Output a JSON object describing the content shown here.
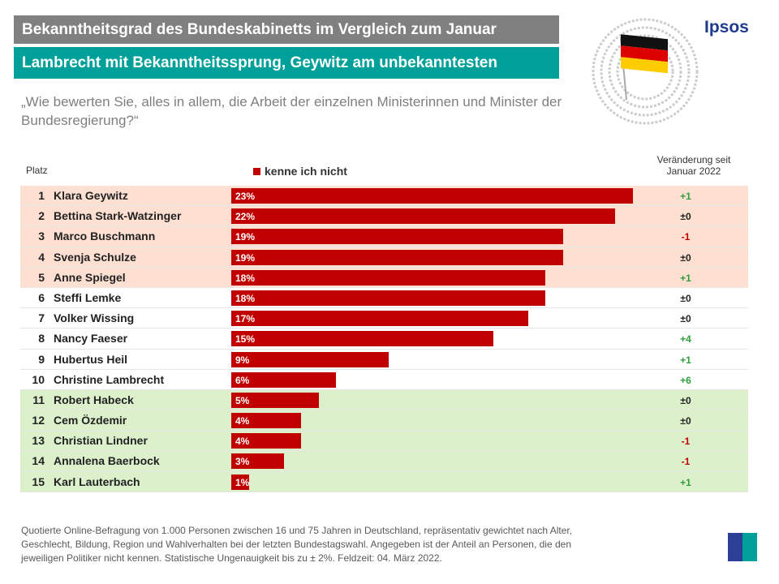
{
  "header": {
    "title": "Bekanntheitsgrad des Bundeskabinetts im Vergleich zum Januar",
    "subtitle": "Lambrecht mit Bekanntheitssprung, Geywitz am unbekanntesten",
    "question": "„Wie bewerten Sie, alles in allem, die Arbeit der einzelnen Ministerinnen und Minister der Bundesregierung?“",
    "brand": "Ipsos"
  },
  "chart_data": {
    "type": "bar",
    "orientation": "horizontal",
    "rank_label": "Platz",
    "change_label": "Veränderung seit Januar 2022",
    "legend": [
      "kenne ich nicht"
    ],
    "series_color": "#c00000",
    "unit": "%",
    "rows": [
      {
        "rank": "1",
        "name": "Klara Geywitz",
        "value": 23,
        "change": "+1",
        "band": "top"
      },
      {
        "rank": "2",
        "name": "Bettina Stark-Watzinger",
        "value": 22,
        "change": "±0",
        "band": "top"
      },
      {
        "rank": "3",
        "name": "Marco Buschmann",
        "value": 19,
        "change": "-1",
        "band": "top"
      },
      {
        "rank": "4",
        "name": "Svenja Schulze",
        "value": 19,
        "change": "±0",
        "band": "top"
      },
      {
        "rank": "5",
        "name": "Anne Spiegel",
        "value": 18,
        "change": "+1",
        "band": "top"
      },
      {
        "rank": "6",
        "name": "Steffi Lemke",
        "value": 18,
        "change": "±0",
        "band": "mid"
      },
      {
        "rank": "7",
        "name": "Volker Wissing",
        "value": 17,
        "change": "±0",
        "band": "mid"
      },
      {
        "rank": "8",
        "name": "Nancy Faeser",
        "value": 15,
        "change": "+4",
        "band": "mid"
      },
      {
        "rank": "9",
        "name": "Hubertus Heil",
        "value": 9,
        "change": "+1",
        "band": "mid"
      },
      {
        "rank": "10",
        "name": "Christine Lambrecht",
        "value": 6,
        "change": "+6",
        "band": "mid"
      },
      {
        "rank": "11",
        "name": "Robert Habeck",
        "value": 5,
        "change": "±0",
        "band": "bottom"
      },
      {
        "rank": "12",
        "name": "Cem Özdemir",
        "value": 4,
        "change": "±0",
        "band": "bottom"
      },
      {
        "rank": "13",
        "name": "Christian Lindner",
        "value": 4,
        "change": "-1",
        "band": "bottom"
      },
      {
        "rank": "14",
        "name": "Annalena Baerbock",
        "value": 3,
        "change": "-1",
        "band": "bottom"
      },
      {
        "rank": "15",
        "name": "Karl Lauterbach",
        "value": 1,
        "change": "+1",
        "band": "bottom"
      }
    ],
    "band_colors": {
      "top": "#fde0d2",
      "mid": "#ffffff",
      "bottom": "#dcf0cc"
    },
    "change_colors": {
      "positive": "#2e9e3a",
      "negative": "#c00000",
      "neutral": "#222222"
    }
  },
  "footer": {
    "note": "Quotierte Online-Befragung von 1.000 Personen zwischen 16 und 75 Jahren in Deutschland, repräsentativ gewichtet nach Alter, Geschlecht, Bildung, Region und Wahlverhalten bei der letzten Bundestagswahl. Angegeben ist der Anteil an Personen, die den jeweiligen Politiker nicht kennen. Statistische Ungenauigkeit bis zu ± 2%. Feldzeit: 04. März 2022.",
    "logo": "Ipsos"
  }
}
